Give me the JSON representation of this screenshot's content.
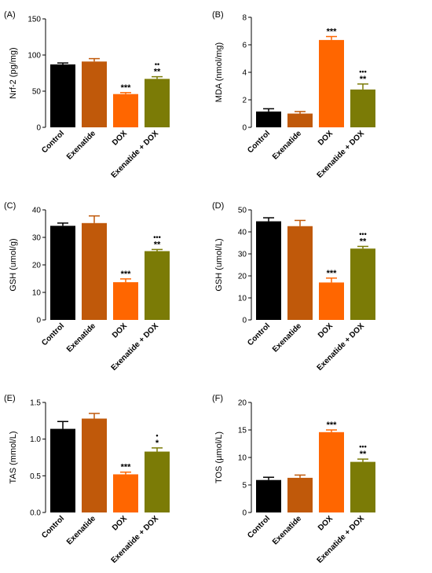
{
  "colors": {
    "control": "#000000",
    "exenatide": "#C0590A",
    "dox": "#FF6600",
    "exenatide_dox": "#7B7B06",
    "axis": "#000000"
  },
  "chart_data": [
    {
      "panel": "(A)",
      "type": "bar",
      "categories": [
        "Control",
        "Exenatide",
        "DOX",
        "Exenatide + DOX"
      ],
      "values": [
        87,
        91,
        46,
        67
      ],
      "errors": [
        2,
        4,
        2,
        3
      ],
      "ylabel": "Nrf-2  (pg/mg)",
      "ylim": [
        0,
        150
      ],
      "yticks": [
        "0",
        "50",
        "100",
        "150"
      ],
      "dots": [
        "",
        "",
        "",
        "••"
      ],
      "stars": [
        "",
        "",
        "***",
        "**"
      ]
    },
    {
      "panel": "(B)",
      "type": "bar",
      "categories": [
        "Control",
        "Exenatide",
        "DOX",
        "Exenatide + DOX"
      ],
      "values": [
        1.15,
        1.0,
        6.35,
        2.75
      ],
      "errors": [
        0.2,
        0.15,
        0.25,
        0.4
      ],
      "ylabel": "MDA  (nmol/mg)",
      "ylim": [
        0,
        8
      ],
      "yticks": [
        "0",
        "2",
        "4",
        "6",
        "8"
      ],
      "dots": [
        "",
        "",
        "",
        "•••"
      ],
      "stars": [
        "",
        "",
        "***",
        "**"
      ]
    },
    {
      "panel": "(C)",
      "type": "bar",
      "categories": [
        "Control",
        "Exenatide",
        "DOX",
        "Exenatide + DOX"
      ],
      "values": [
        34.2,
        35.2,
        13.7,
        25.0
      ],
      "errors": [
        1.0,
        2.6,
        1.2,
        0.6
      ],
      "ylabel": "GSH (umol/g)",
      "ylim": [
        0,
        40
      ],
      "yticks": [
        "0",
        "10",
        "20",
        "30",
        "40"
      ],
      "dots": [
        "",
        "",
        "",
        "•••"
      ],
      "stars": [
        "",
        "",
        "***",
        "**"
      ]
    },
    {
      "panel": "(D)",
      "type": "bar",
      "categories": [
        "Control",
        "Exenatide",
        "DOX",
        "Exenatide + DOX"
      ],
      "values": [
        44.8,
        42.6,
        17.0,
        32.4
      ],
      "errors": [
        1.6,
        2.6,
        2.0,
        1.0
      ],
      "ylabel": "GSH (umol/L)",
      "ylim": [
        0,
        50
      ],
      "yticks": [
        "0",
        "10",
        "20",
        "30",
        "40",
        "50"
      ],
      "dots": [
        "",
        "",
        "",
        "•••"
      ],
      "stars": [
        "",
        "",
        "***",
        "**"
      ]
    },
    {
      "panel": "(E)",
      "type": "bar",
      "categories": [
        "Control",
        "Exenatide",
        "DOX",
        "Exenatide + DOX"
      ],
      "values": [
        1.14,
        1.28,
        0.52,
        0.83
      ],
      "errors": [
        0.1,
        0.07,
        0.03,
        0.05
      ],
      "ylabel": "TAS (mmol/L)",
      "ylim": [
        0,
        1.5
      ],
      "yticks": [
        "0.0",
        "0.5",
        "1.0",
        "1.5"
      ],
      "dots": [
        "",
        "",
        "",
        "•"
      ],
      "stars": [
        "",
        "",
        "***",
        "*"
      ]
    },
    {
      "panel": "(F)",
      "type": "bar",
      "categories": [
        "Control",
        "Exenatide",
        "DOX",
        "Exenatide + DOX"
      ],
      "values": [
        5.9,
        6.3,
        14.6,
        9.2
      ],
      "errors": [
        0.5,
        0.5,
        0.4,
        0.5
      ],
      "ylabel": "TOS (µmol/L)",
      "ylim": [
        0,
        20
      ],
      "yticks": [
        "0",
        "5",
        "10",
        "15",
        "20"
      ],
      "dots": [
        "",
        "",
        "",
        "•••"
      ],
      "stars": [
        "",
        "",
        "***",
        "**"
      ]
    }
  ]
}
